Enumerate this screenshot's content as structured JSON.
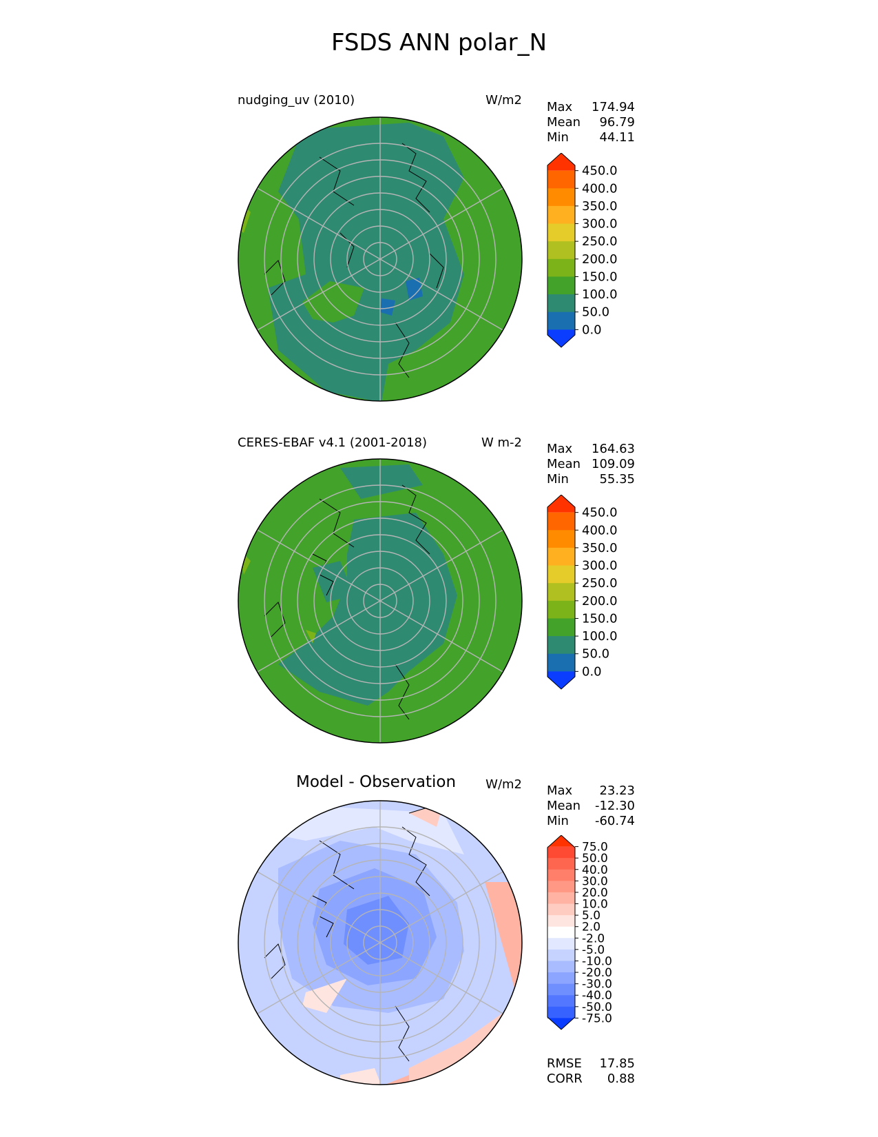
{
  "title": "FSDS ANN polar_N",
  "panels": [
    {
      "name": "test",
      "left_title": "nudging_uv (2010)",
      "units": "W/m2",
      "stats": [
        {
          "label": "Max",
          "value": "174.94"
        },
        {
          "label": "Mean",
          "value": "96.79"
        },
        {
          "label": "Min",
          "value": "44.11"
        }
      ],
      "colorbar": {
        "ticks": [
          "450.0",
          "400.0",
          "350.0",
          "300.0",
          "250.0",
          "200.0",
          "150.0",
          "100.0",
          "50.0",
          "0.0"
        ],
        "colors_top_to_bottom": [
          "#ff3300",
          "#ff6600",
          "#ff8c00",
          "#ffb020",
          "#e6cc2a",
          "#b0c020",
          "#7cb318",
          "#42a22a",
          "#2f8a72",
          "#1a6fb0",
          "#0b3dff"
        ]
      }
    },
    {
      "name": "reference",
      "left_title": "CERES-EBAF v4.1 (2001-2018)",
      "units": "W m-2",
      "stats": [
        {
          "label": "Max",
          "value": "164.63"
        },
        {
          "label": "Mean",
          "value": "109.09"
        },
        {
          "label": "Min",
          "value": "55.35"
        }
      ],
      "colorbar": {
        "ticks": [
          "450.0",
          "400.0",
          "350.0",
          "300.0",
          "250.0",
          "200.0",
          "150.0",
          "100.0",
          "50.0",
          "0.0"
        ],
        "colors_top_to_bottom": [
          "#ff3300",
          "#ff6600",
          "#ff8c00",
          "#ffb020",
          "#e6cc2a",
          "#b0c020",
          "#7cb318",
          "#42a22a",
          "#2f8a72",
          "#1a6fb0",
          "#0b3dff"
        ]
      }
    },
    {
      "name": "difference",
      "center_title": "Model - Observation",
      "units": "W/m2",
      "stats": [
        {
          "label": "Max",
          "value": "23.23"
        },
        {
          "label": "Mean",
          "value": "-12.30"
        },
        {
          "label": "Min",
          "value": "-60.74"
        }
      ],
      "colorbar": {
        "ticks": [
          "75.0",
          "50.0",
          "40.0",
          "30.0",
          "20.0",
          "10.0",
          "5.0",
          "2.0",
          "-2.0",
          "-5.0",
          "-10.0",
          "-20.0",
          "-30.0",
          "-40.0",
          "-50.0",
          "-75.0"
        ],
        "colors_top_to_bottom": [
          "#ff3300",
          "#ff4a33",
          "#ff6650",
          "#ff7f6a",
          "#ff9985",
          "#ffb3a3",
          "#ffccc2",
          "#ffe5df",
          "#ffffff",
          "#e2e8ff",
          "#c6d2ff",
          "#a9bcff",
          "#8ca5ff",
          "#708fff",
          "#5378ff",
          "#3762ff",
          "#0b3dff"
        ]
      },
      "metrics": [
        {
          "label": "RMSE",
          "value": "17.85"
        },
        {
          "label": "CORR",
          "value": "0.88"
        }
      ]
    }
  ]
}
